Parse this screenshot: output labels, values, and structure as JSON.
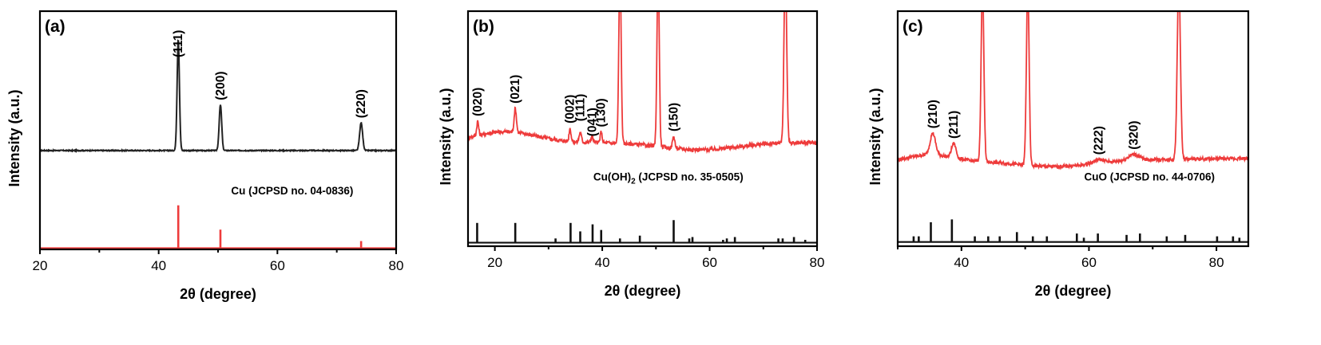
{
  "chart_data": [
    {
      "type": "line",
      "panel_label": "(a)",
      "xlabel": "2θ (degree)",
      "ylabel": "Intensity (a.u.)",
      "xlim": [
        20,
        80
      ],
      "xticks": [
        20,
        40,
        60,
        80
      ],
      "grid": false,
      "series": [
        {
          "color": "#222222",
          "kind": "measured",
          "baseline": 0.32,
          "noise": 0.004,
          "peaks": [
            {
              "x": 43.3,
              "height": 0.93,
              "width": 0.28,
              "label": "(111)"
            },
            {
              "x": 50.4,
              "height": 0.38,
              "width": 0.3,
              "label": "(200)"
            },
            {
              "x": 74.1,
              "height": 0.23,
              "width": 0.35,
              "label": "(220)"
            }
          ]
        },
        {
          "color": "#ee3b3b",
          "kind": "reference",
          "baseline": 0.0,
          "peaks": [
            {
              "x": 43.3,
              "height": 0.6
            },
            {
              "x": 50.4,
              "height": 0.26
            },
            {
              "x": 74.1,
              "height": 0.1
            }
          ]
        }
      ],
      "annotations": [
        {
          "text": "Cu (JCPSD no. 04-0836)",
          "x": 62.5,
          "y": 0.23
        }
      ]
    },
    {
      "type": "line",
      "panel_label": "(b)",
      "xlabel": "2θ (degree)",
      "ylabel": "Intensity (a.u.)",
      "xlim": [
        15,
        80
      ],
      "xticks": [
        20,
        40,
        60,
        80
      ],
      "grid": false,
      "series": [
        {
          "color": "#ee3b3b",
          "kind": "measured",
          "baseline": 0.42,
          "noise": 0.016,
          "peaks": [
            {
              "x": 16.8,
              "height": 0.12,
              "width": 0.25,
              "label": "(020)"
            },
            {
              "x": 23.8,
              "height": 0.2,
              "width": 0.3,
              "label": "(021)"
            },
            {
              "x": 34.0,
              "height": 0.11,
              "width": 0.25,
              "label": "(002)"
            },
            {
              "x": 35.9,
              "height": 0.08,
              "width": 0.3,
              "label": "(111)"
            },
            {
              "x": 38.1,
              "height": 0.05,
              "width": 0.3,
              "label": "(041)"
            },
            {
              "x": 39.8,
              "height": 0.09,
              "width": 0.25,
              "label": "(130)"
            },
            {
              "x": 43.3,
              "height": 1.5,
              "width": 0.3
            },
            {
              "x": 50.4,
              "height": 1.5,
              "width": 0.3
            },
            {
              "x": 53.3,
              "height": 0.1,
              "width": 0.3,
              "label": "(150)"
            },
            {
              "x": 74.1,
              "height": 1.5,
              "width": 0.35
            }
          ]
        },
        {
          "color": "#111111",
          "kind": "reference",
          "baseline": 0.0,
          "peaks": [
            {
              "x": 16.7,
              "height": 0.14
            },
            {
              "x": 23.8,
              "height": 0.14
            },
            {
              "x": 31.3,
              "height": 0.03
            },
            {
              "x": 34.1,
              "height": 0.14
            },
            {
              "x": 35.9,
              "height": 0.08
            },
            {
              "x": 38.2,
              "height": 0.13
            },
            {
              "x": 39.8,
              "height": 0.09
            },
            {
              "x": 43.3,
              "height": 0.03
            },
            {
              "x": 47.0,
              "height": 0.05
            },
            {
              "x": 53.3,
              "height": 0.16
            },
            {
              "x": 56.2,
              "height": 0.03
            },
            {
              "x": 56.8,
              "height": 0.04
            },
            {
              "x": 62.5,
              "height": 0.02
            },
            {
              "x": 63.2,
              "height": 0.03
            },
            {
              "x": 64.7,
              "height": 0.04
            },
            {
              "x": 72.8,
              "height": 0.03
            },
            {
              "x": 73.6,
              "height": 0.03
            },
            {
              "x": 75.7,
              "height": 0.04
            },
            {
              "x": 77.8,
              "height": 0.02
            }
          ]
        }
      ],
      "annotations": [
        {
          "text": "Cu(OH)",
          "sub": "2",
          "tail": " (JCPSD no. 35-0505)",
          "x": 52.3,
          "y": 0.28
        }
      ]
    },
    {
      "type": "line",
      "panel_label": "(c)",
      "xlabel": "2θ (degree)",
      "ylabel": "Intensity (a.u.)",
      "xlim": [
        30,
        85
      ],
      "xticks": [
        40,
        60,
        80
      ],
      "grid": false,
      "series": [
        {
          "color": "#ee3b3b",
          "kind": "measured",
          "baseline": 0.38,
          "noise": 0.014,
          "peaks": [
            {
              "x": 35.5,
              "height": 0.18,
              "width": 0.6,
              "label": "(210)"
            },
            {
              "x": 38.8,
              "height": 0.12,
              "width": 0.5,
              "label": "(211)"
            },
            {
              "x": 43.3,
              "height": 1.5,
              "width": 0.3
            },
            {
              "x": 50.4,
              "height": 1.5,
              "width": 0.3
            },
            {
              "x": 61.5,
              "height": 0.03,
              "width": 1.2,
              "label": "(222)"
            },
            {
              "x": 67.0,
              "height": 0.05,
              "width": 1.2,
              "label": "(320)"
            },
            {
              "x": 74.1,
              "height": 1.5,
              "width": 0.35
            }
          ]
        },
        {
          "color": "#111111",
          "kind": "reference",
          "baseline": 0.0,
          "peaks": [
            {
              "x": 32.5,
              "height": 0.04
            },
            {
              "x": 33.3,
              "height": 0.04
            },
            {
              "x": 35.2,
              "height": 0.14
            },
            {
              "x": 38.5,
              "height": 0.16
            },
            {
              "x": 42.1,
              "height": 0.04
            },
            {
              "x": 44.2,
              "height": 0.04
            },
            {
              "x": 46.0,
              "height": 0.04
            },
            {
              "x": 48.7,
              "height": 0.07
            },
            {
              "x": 51.2,
              "height": 0.04
            },
            {
              "x": 53.4,
              "height": 0.04
            },
            {
              "x": 58.1,
              "height": 0.06
            },
            {
              "x": 59.2,
              "height": 0.03
            },
            {
              "x": 61.4,
              "height": 0.06
            },
            {
              "x": 65.9,
              "height": 0.05
            },
            {
              "x": 68.0,
              "height": 0.06
            },
            {
              "x": 72.2,
              "height": 0.04
            },
            {
              "x": 75.1,
              "height": 0.05
            },
            {
              "x": 80.1,
              "height": 0.04
            },
            {
              "x": 82.6,
              "height": 0.04
            },
            {
              "x": 83.6,
              "height": 0.03
            }
          ]
        }
      ],
      "annotations": [
        {
          "text": "CuO (JCPSD no. 44-0706)",
          "x": 69.5,
          "y": 0.28
        }
      ]
    }
  ]
}
